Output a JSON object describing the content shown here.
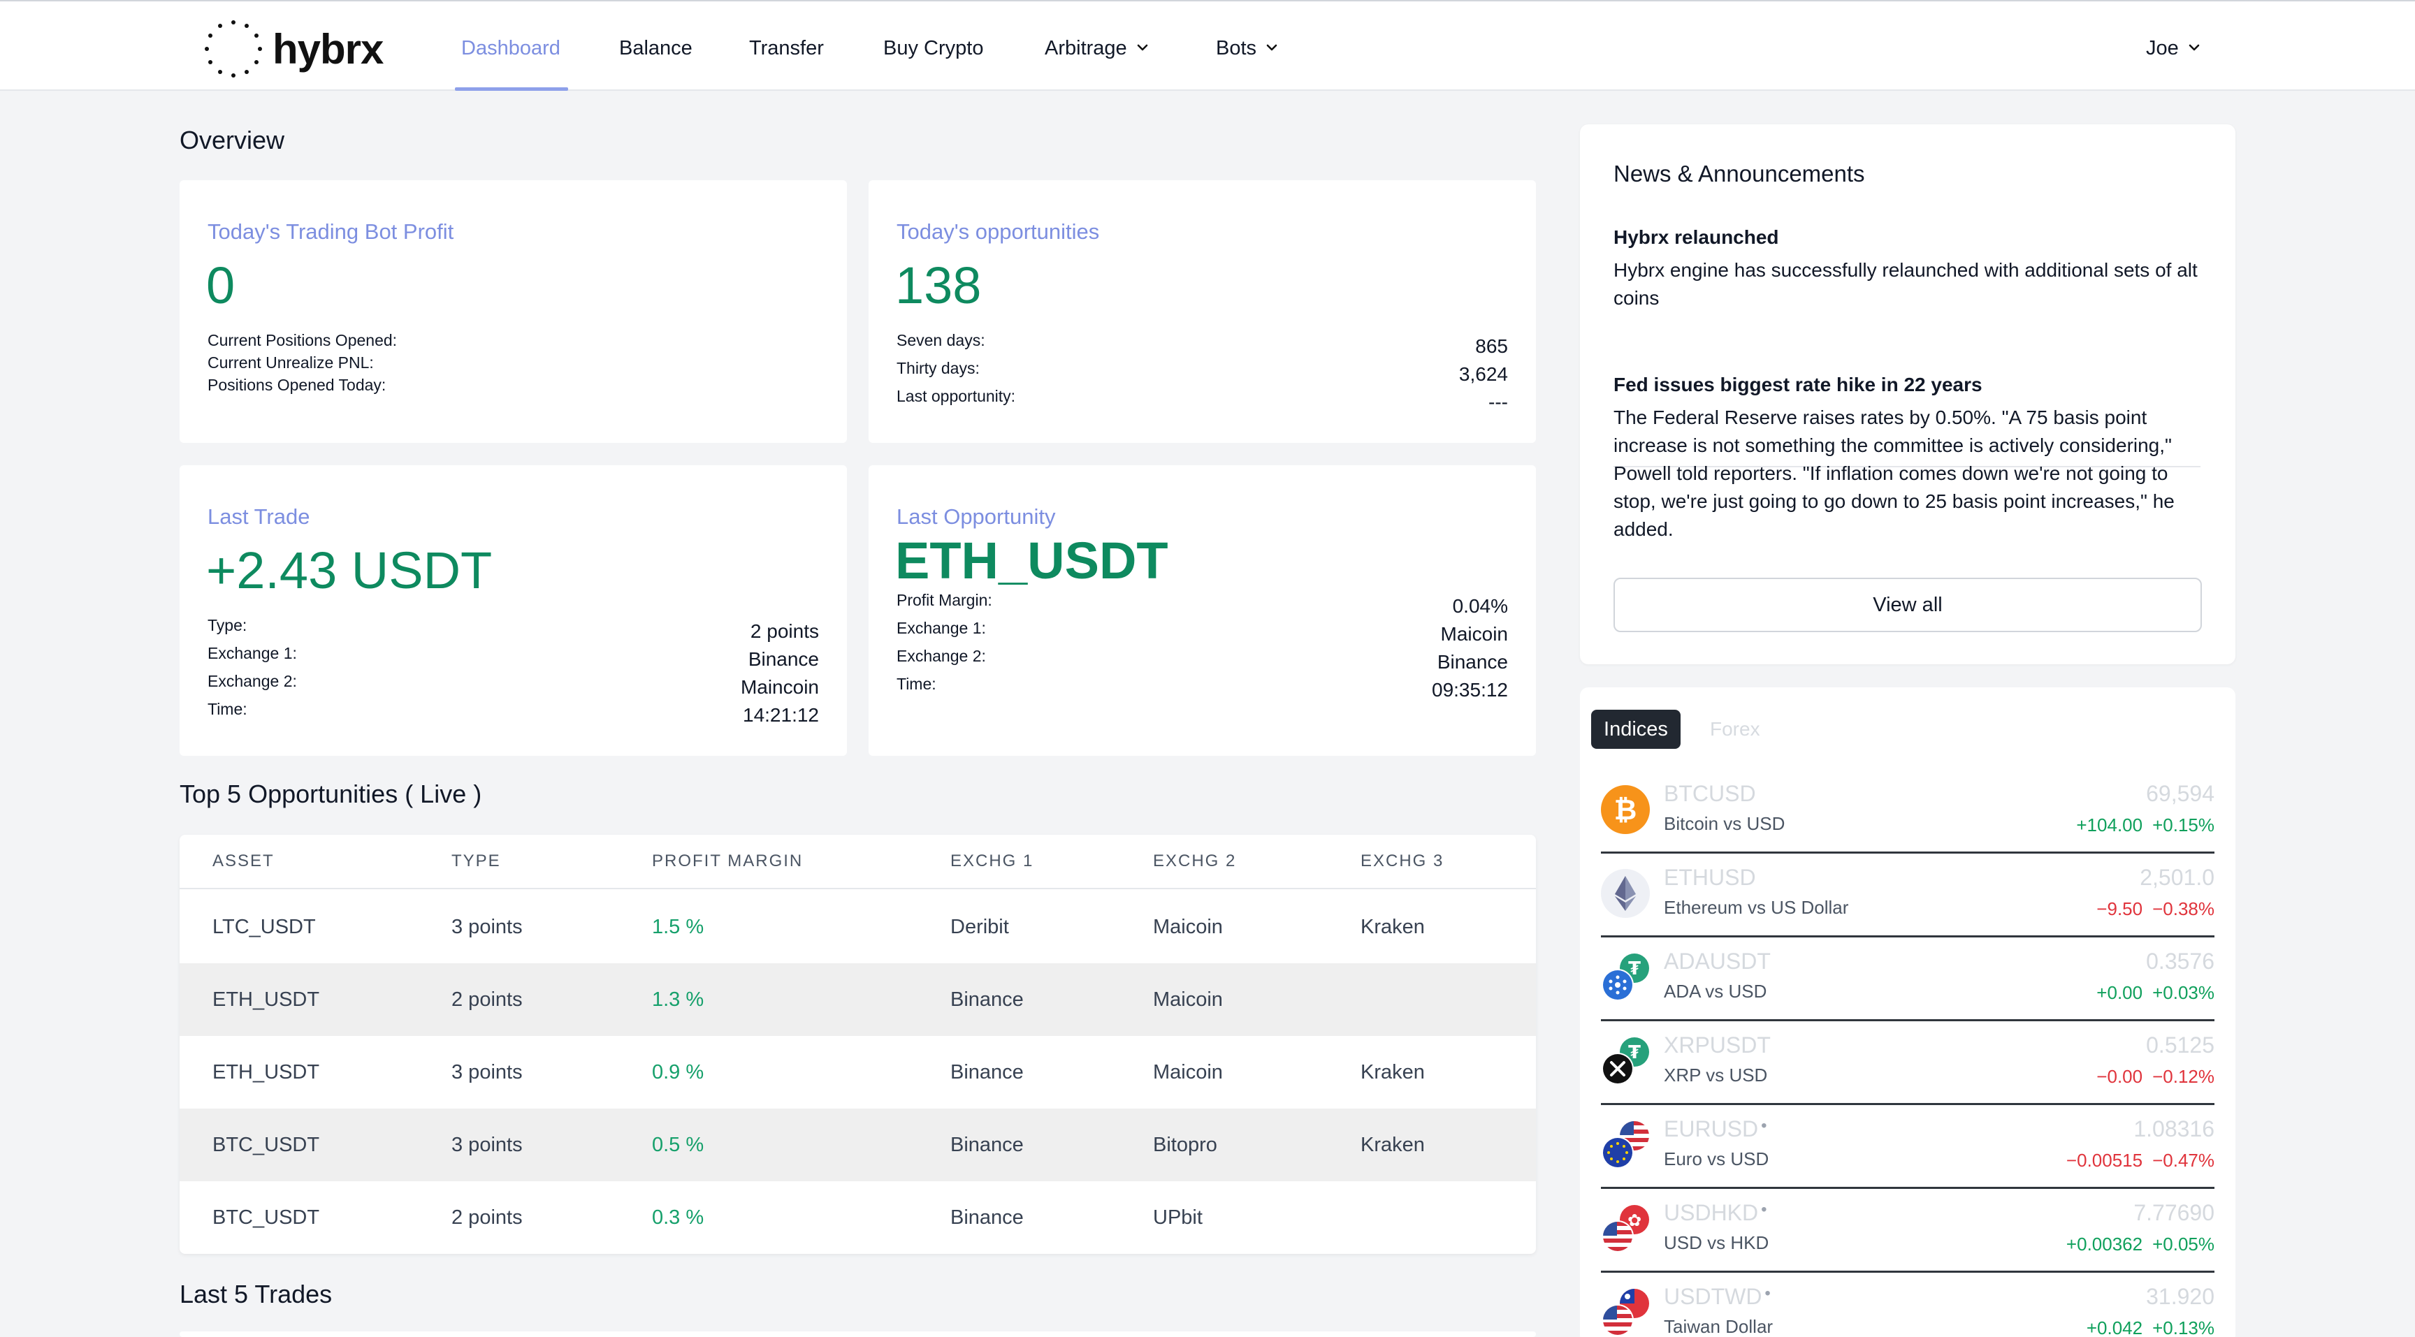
{
  "nav": {
    "logo_text": "hybrx",
    "items": [
      {
        "label": "Dashboard"
      },
      {
        "label": "Balance"
      },
      {
        "label": "Transfer"
      },
      {
        "label": "Buy Crypto"
      },
      {
        "label": "Arbitrage"
      },
      {
        "label": "Bots"
      }
    ],
    "user": "Joe",
    "accent_color": "#7c8ee0"
  },
  "overview": {
    "title": "Overview",
    "bot_profit": {
      "label": "Today's Trading Bot Profit",
      "value": "0",
      "rows": [
        {
          "key": "Current Positions Opened:"
        },
        {
          "key": "Current Unrealize PNL:"
        },
        {
          "key": "Positions Opened Today:"
        }
      ]
    },
    "opportunities": {
      "label": "Today's opportunities",
      "value": "138",
      "rows": [
        {
          "key": "Seven days:",
          "value": "865"
        },
        {
          "key": "Thirty days:",
          "value": "3,624"
        },
        {
          "key": "Last opportunity:",
          "value": "---"
        }
      ]
    },
    "last_trade": {
      "label": "Last Trade",
      "value": "+2.43 USDT",
      "rows": [
        {
          "key": "Type:",
          "value": "2 points"
        },
        {
          "key": "Exchange 1:",
          "value": "Binance"
        },
        {
          "key": "Exchange 2:",
          "value": "Maincoin"
        },
        {
          "key": "Time:",
          "value": "14:21:12"
        }
      ]
    },
    "last_opportunity": {
      "label": "Last Opportunity",
      "value": "ETH_USDT",
      "rows": [
        {
          "key": "Profit Margin:",
          "value": "0.04%"
        },
        {
          "key": "Exchange 1:",
          "value": "Maicoin"
        },
        {
          "key": "Exchange 2:",
          "value": "Binance"
        },
        {
          "key": "Time:",
          "value": "09:35:12"
        }
      ]
    }
  },
  "top5": {
    "title": "Top 5 Opportunities ( Live )",
    "columns": [
      "ASSET",
      "TYPE",
      "PROFIT MARGIN",
      "EXCHG 1",
      "EXCHG 2",
      "EXCHG 3"
    ],
    "rows": [
      {
        "asset": "LTC_USDT",
        "type": "3 points",
        "margin": "1.5 %",
        "ex1": "Deribit",
        "ex2": "Maicoin",
        "ex3": "Kraken"
      },
      {
        "asset": "ETH_USDT",
        "type": "2 points",
        "margin": "1.3 %",
        "ex1": "Binance",
        "ex2": "Maicoin",
        "ex3": ""
      },
      {
        "asset": "ETH_USDT",
        "type": "3 points",
        "margin": "0.9 %",
        "ex1": "Binance",
        "ex2": "Maicoin",
        "ex3": "Kraken"
      },
      {
        "asset": "BTC_USDT",
        "type": "3 points",
        "margin": "0.5 %",
        "ex1": "Binance",
        "ex2": "Bitopro",
        "ex3": "Kraken"
      },
      {
        "asset": "BTC_USDT",
        "type": "2 points",
        "margin": "0.3 %",
        "ex1": "Binance",
        "ex2": "UPbit",
        "ex3": ""
      }
    ]
  },
  "last5": {
    "title": "Last 5 Trades"
  },
  "news": {
    "title": "News & Announcements",
    "items": [
      {
        "title": "Hybrx relaunched",
        "body": "Hybrx engine has successfully relaunched with additional sets of alt coins"
      },
      {
        "title": "Fed issues biggest rate hike in 22 years",
        "body": "The Federal Reserve raises rates by 0.50%. \"A 75 basis point increase is not something the committee is actively considering,\" Powell told reporters. \"If inflation comes down we're not going to stop, we're just going to go down to 25 basis point increases,\" he added."
      }
    ],
    "view_all": "View all"
  },
  "markets": {
    "tabs": [
      "Indices",
      "Forex"
    ],
    "rows": [
      {
        "symbol": "BTCUSD",
        "dot": "",
        "name": "Bitcoin vs USD",
        "price": "69,594",
        "change": "+104.00",
        "pct": "+0.15%",
        "dir": "up",
        "icon": "bitcoin-icon"
      },
      {
        "symbol": "ETHUSD",
        "dot": "",
        "name": "Ethereum vs US Dollar",
        "price": "2,501.0",
        "change": "−9.50",
        "pct": "−0.38%",
        "dir": "down",
        "icon": "ethereum-icon"
      },
      {
        "symbol": "ADAUSDT",
        "dot": "",
        "name": "ADA vs USD",
        "price": "0.3576",
        "change": "+0.00",
        "pct": "+0.03%",
        "dir": "up",
        "icon": "cardano-tether-icon"
      },
      {
        "symbol": "XRPUSDT",
        "dot": "",
        "name": "XRP vs USD",
        "price": "0.5125",
        "change": "−0.00",
        "pct": "−0.12%",
        "dir": "down",
        "icon": "xrp-tether-icon"
      },
      {
        "symbol": "EURUSD",
        "dot": "•",
        "name": "Euro vs USD",
        "price": "1.08316",
        "change": "−0.00515",
        "pct": "−0.47%",
        "dir": "down",
        "icon": "eu-us-flag-icon"
      },
      {
        "symbol": "USDHKD",
        "dot": "•",
        "name": "USD vs HKD",
        "price": "7.77690",
        "change": "+0.00362",
        "pct": "+0.05%",
        "dir": "up",
        "icon": "us-hk-flag-icon"
      },
      {
        "symbol": "USDTWD",
        "dot": "•",
        "name": "Taiwan Dollar",
        "price": "31.920",
        "change": "+0.042",
        "pct": "+0.13%",
        "dir": "up",
        "icon": "us-tw-flag-icon"
      }
    ],
    "up_color": "#10a05c",
    "down_color": "#e0343c"
  }
}
